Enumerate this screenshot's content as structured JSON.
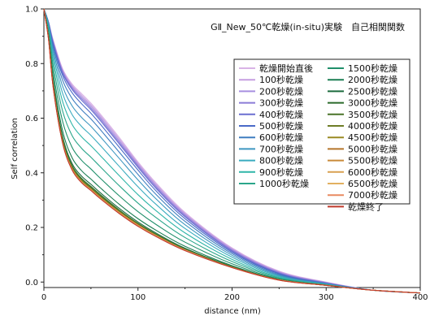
{
  "chart_data": {
    "type": "line",
    "title": "GⅡ_New_50℃乾燥(in-situ)実験　自己相関関数",
    "xlabel": "distance (nm)",
    "ylabel": "Self correlation",
    "xlim": [
      0,
      400
    ],
    "ylim": [
      -0.02,
      1.0
    ],
    "xticks": [
      0,
      100,
      200,
      300,
      400
    ],
    "yticks": [
      0.0,
      0.2,
      0.4,
      0.6,
      0.8,
      1.0
    ],
    "xtick_labels": [
      "0",
      "100",
      "200",
      "300",
      "400"
    ],
    "ytick_labels": [
      "0.0",
      "0.2",
      "0.4",
      "0.6",
      "0.8",
      "1.0"
    ],
    "grid": false,
    "legend_position": "right",
    "legend_columns": 2,
    "x": [
      0,
      5,
      10,
      20,
      30,
      40,
      50,
      60,
      80,
      100,
      120,
      150,
      200,
      250,
      300,
      350,
      400
    ],
    "series": [
      {
        "name": "乾燥開始直後",
        "color": "#d9b3e6",
        "values": [
          1.0,
          0.95,
          0.885,
          0.78,
          0.725,
          0.69,
          0.655,
          0.615,
          0.53,
          0.44,
          0.36,
          0.255,
          0.125,
          0.04,
          0.0,
          -0.03,
          -0.04
        ]
      },
      {
        "name": "100秒乾燥",
        "color": "#c59ee0",
        "values": [
          1.0,
          0.95,
          0.882,
          0.776,
          0.72,
          0.684,
          0.649,
          0.609,
          0.524,
          0.435,
          0.355,
          0.251,
          0.122,
          0.038,
          -0.001,
          -0.03,
          -0.04
        ]
      },
      {
        "name": "200秒乾燥",
        "color": "#a78fe0",
        "values": [
          1.0,
          0.95,
          0.879,
          0.772,
          0.715,
          0.678,
          0.643,
          0.603,
          0.518,
          0.43,
          0.35,
          0.247,
          0.119,
          0.036,
          -0.002,
          -0.03,
          -0.04
        ]
      },
      {
        "name": "300秒乾燥",
        "color": "#8a7bd6",
        "values": [
          1.0,
          0.95,
          0.876,
          0.768,
          0.71,
          0.672,
          0.637,
          0.597,
          0.512,
          0.425,
          0.345,
          0.243,
          0.116,
          0.034,
          -0.003,
          -0.03,
          -0.04
        ]
      },
      {
        "name": "400秒乾燥",
        "color": "#6a6fd0",
        "values": [
          1.0,
          0.95,
          0.873,
          0.764,
          0.705,
          0.666,
          0.631,
          0.591,
          0.506,
          0.42,
          0.34,
          0.239,
          0.113,
          0.032,
          -0.004,
          -0.03,
          -0.04
        ]
      },
      {
        "name": "500秒乾燥",
        "color": "#4a6ac8",
        "values": [
          1.0,
          0.95,
          0.868,
          0.755,
          0.693,
          0.653,
          0.618,
          0.578,
          0.494,
          0.41,
          0.331,
          0.232,
          0.109,
          0.03,
          -0.005,
          -0.03,
          -0.04
        ]
      },
      {
        "name": "600秒乾燥",
        "color": "#3f7ec0",
        "values": [
          1.0,
          0.945,
          0.858,
          0.738,
          0.672,
          0.631,
          0.597,
          0.558,
          0.476,
          0.394,
          0.318,
          0.222,
          0.104,
          0.027,
          -0.006,
          -0.03,
          -0.04
        ]
      },
      {
        "name": "700秒乾燥",
        "color": "#3d96c0",
        "values": [
          1.0,
          0.94,
          0.845,
          0.716,
          0.645,
          0.603,
          0.57,
          0.532,
          0.453,
          0.374,
          0.302,
          0.21,
          0.098,
          0.024,
          -0.007,
          -0.03,
          -0.04
        ]
      },
      {
        "name": "800秒乾燥",
        "color": "#3aabbf",
        "values": [
          1.0,
          0.935,
          0.83,
          0.69,
          0.613,
          0.57,
          0.537,
          0.5,
          0.424,
          0.349,
          0.282,
          0.196,
          0.091,
          0.021,
          -0.008,
          -0.03,
          -0.04
        ]
      },
      {
        "name": "900秒乾燥",
        "color": "#2fb5a8",
        "values": [
          1.0,
          0.93,
          0.812,
          0.66,
          0.577,
          0.532,
          0.499,
          0.463,
          0.39,
          0.32,
          0.259,
          0.18,
          0.083,
          0.018,
          -0.009,
          -0.03,
          -0.04
        ]
      },
      {
        "name": "1000秒乾燥",
        "color": "#2aa58a",
        "values": [
          1.0,
          0.92,
          0.79,
          0.625,
          0.536,
          0.49,
          0.457,
          0.422,
          0.353,
          0.289,
          0.234,
          0.163,
          0.075,
          0.015,
          -0.01,
          -0.03,
          -0.04
        ]
      },
      {
        "name": "1500秒乾燥",
        "color": "#1f8f6a",
        "values": [
          1.0,
          0.91,
          0.765,
          0.587,
          0.493,
          0.446,
          0.414,
          0.38,
          0.316,
          0.258,
          0.209,
          0.146,
          0.067,
          0.012,
          -0.011,
          -0.03,
          -0.04
        ]
      },
      {
        "name": "2000秒乾燥",
        "color": "#1a7d52",
        "values": [
          1.0,
          0.9,
          0.742,
          0.552,
          0.455,
          0.408,
          0.377,
          0.345,
          0.285,
          0.232,
          0.188,
          0.131,
          0.06,
          0.01,
          -0.012,
          -0.03,
          -0.04
        ]
      },
      {
        "name": "2500秒乾燥",
        "color": "#1b6b3d",
        "values": [
          1.0,
          0.895,
          0.728,
          0.532,
          0.434,
          0.388,
          0.358,
          0.327,
          0.27,
          0.22,
          0.178,
          0.124,
          0.057,
          0.009,
          -0.012,
          -0.03,
          -0.04
        ]
      },
      {
        "name": "3000秒乾燥",
        "color": "#2a6a2a",
        "values": [
          1.0,
          0.893,
          0.722,
          0.523,
          0.426,
          0.38,
          0.35,
          0.32,
          0.264,
          0.215,
          0.174,
          0.121,
          0.056,
          0.008,
          -0.012,
          -0.03,
          -0.04
        ]
      },
      {
        "name": "3500秒乾燥",
        "color": "#4a7428",
        "values": [
          1.0,
          0.892,
          0.719,
          0.519,
          0.422,
          0.376,
          0.346,
          0.316,
          0.261,
          0.213,
          0.172,
          0.12,
          0.055,
          0.008,
          -0.012,
          -0.03,
          -0.04
        ]
      },
      {
        "name": "4000秒乾燥",
        "color": "#6e7d26",
        "values": [
          1.0,
          0.891,
          0.717,
          0.516,
          0.419,
          0.373,
          0.343,
          0.313,
          0.259,
          0.211,
          0.171,
          0.119,
          0.055,
          0.008,
          -0.012,
          -0.03,
          -0.04
        ]
      },
      {
        "name": "4500秒乾燥",
        "color": "#9a8a22",
        "values": [
          1.0,
          0.89,
          0.715,
          0.514,
          0.417,
          0.371,
          0.341,
          0.311,
          0.257,
          0.21,
          0.17,
          0.118,
          0.054,
          0.008,
          -0.012,
          -0.03,
          -0.04
        ]
      },
      {
        "name": "5000秒乾燥",
        "color": "#b5752a",
        "values": [
          1.0,
          0.89,
          0.714,
          0.512,
          0.415,
          0.369,
          0.34,
          0.31,
          0.256,
          0.209,
          0.169,
          0.118,
          0.054,
          0.008,
          -0.012,
          -0.03,
          -0.04
        ]
      },
      {
        "name": "5500秒乾燥",
        "color": "#c98a3a",
        "values": [
          1.0,
          0.889,
          0.713,
          0.511,
          0.414,
          0.368,
          0.339,
          0.309,
          0.255,
          0.208,
          0.168,
          0.117,
          0.054,
          0.008,
          -0.012,
          -0.03,
          -0.04
        ]
      },
      {
        "name": "6000秒乾燥",
        "color": "#d9a050",
        "values": [
          1.0,
          0.889,
          0.712,
          0.51,
          0.413,
          0.367,
          0.338,
          0.308,
          0.254,
          0.207,
          0.168,
          0.117,
          0.054,
          0.008,
          -0.012,
          -0.03,
          -0.04
        ]
      },
      {
        "name": "6500秒乾燥",
        "color": "#e2b060",
        "values": [
          1.0,
          0.888,
          0.711,
          0.509,
          0.412,
          0.366,
          0.337,
          0.307,
          0.253,
          0.206,
          0.167,
          0.116,
          0.053,
          0.007,
          -0.012,
          -0.03,
          -0.04
        ]
      },
      {
        "name": "7000秒乾燥",
        "color": "#e88a60",
        "values": [
          1.0,
          0.888,
          0.71,
          0.508,
          0.411,
          0.365,
          0.336,
          0.306,
          0.252,
          0.205,
          0.166,
          0.116,
          0.053,
          0.007,
          -0.012,
          -0.03,
          -0.04
        ]
      },
      {
        "name": "乾燥終了",
        "color": "#c0392b",
        "values": [
          1.0,
          0.887,
          0.709,
          0.507,
          0.41,
          0.364,
          0.335,
          0.305,
          0.251,
          0.204,
          0.165,
          0.115,
          0.053,
          0.007,
          -0.012,
          -0.03,
          -0.04
        ]
      }
    ]
  }
}
